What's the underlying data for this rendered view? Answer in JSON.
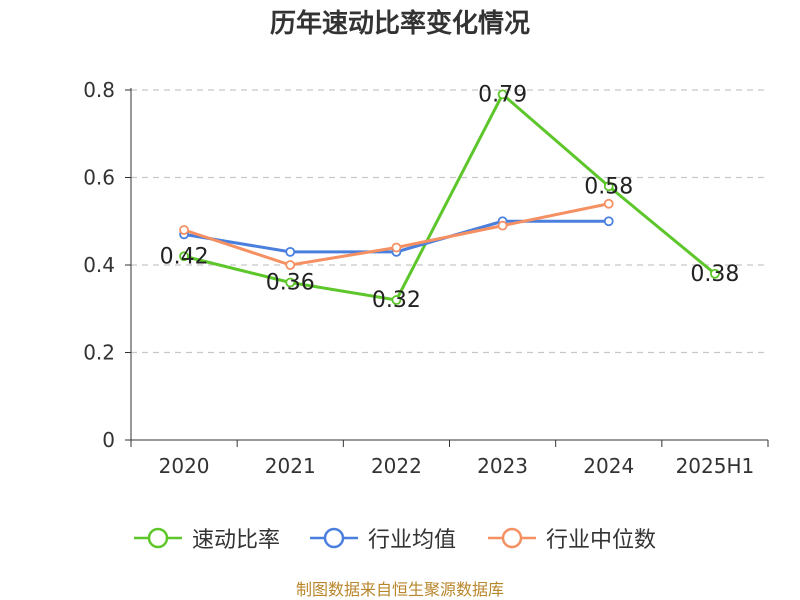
{
  "chart_data": {
    "type": "line",
    "title": "历年速动比率变化情况",
    "categories": [
      "2020",
      "2021",
      "2022",
      "2023",
      "2024",
      "2025H1"
    ],
    "ylim": [
      0,
      0.8
    ],
    "yticks": [
      "0",
      "0.2",
      "0.4",
      "0.6",
      "0.8"
    ],
    "grid": true,
    "legend_position": "bottom",
    "series": [
      {
        "name": "速动比率",
        "color": "#5cc62a",
        "values": [
          0.42,
          0.36,
          0.32,
          0.79,
          0.58,
          0.38
        ],
        "labels": [
          "0.42",
          "0.36",
          "0.32",
          "0.79",
          "0.58",
          "0.38"
        ]
      },
      {
        "name": "行业均值",
        "color": "#4a7fde",
        "values": [
          0.47,
          0.43,
          0.43,
          0.5,
          0.5,
          null
        ]
      },
      {
        "name": "行业中位数",
        "color": "#f59062",
        "values": [
          0.48,
          0.4,
          0.44,
          0.49,
          0.54,
          null
        ]
      }
    ]
  },
  "footer": "制图数据来自恒生聚源数据库"
}
